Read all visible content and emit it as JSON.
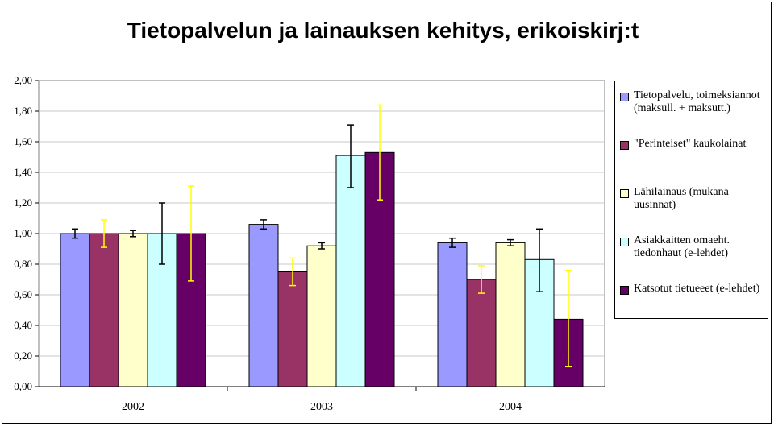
{
  "chart_data": {
    "type": "bar",
    "title": "Tietopalvelun ja lainauksen kehitys, erikoiskirj:t",
    "xlabel": "",
    "ylabel": "",
    "categories": [
      "2002",
      "2003",
      "2004"
    ],
    "ylim": [
      0,
      2
    ],
    "yticks": [
      "0,00",
      "0,20",
      "0,40",
      "0,60",
      "0,80",
      "1,00",
      "1,20",
      "1,40",
      "1,60",
      "1,80",
      "2,00"
    ],
    "grid": true,
    "legend_position": "right",
    "series": [
      {
        "name": "Tietopalvelu, toimeksiannot (maksull. + maksutt.)",
        "color": "#9999ff",
        "error_color": "#000000",
        "values": [
          1.0,
          1.06,
          0.94
        ],
        "error": [
          [
            0.97,
            1.03
          ],
          [
            1.03,
            1.09
          ],
          [
            0.91,
            0.97
          ]
        ]
      },
      {
        "name": "\"Perinteiset\" kaukolainat",
        "color": "#993366",
        "error_color": "#ffff00",
        "values": [
          1.0,
          0.75,
          0.7
        ],
        "error": [
          [
            0.91,
            1.09
          ],
          [
            0.66,
            0.84
          ],
          [
            0.61,
            0.79
          ]
        ]
      },
      {
        "name": "Lähilainaus (mukana uusinnat)",
        "color": "#ffffcc",
        "error_color": "#000000",
        "values": [
          1.0,
          0.92,
          0.94
        ],
        "error": [
          [
            0.98,
            1.02
          ],
          [
            0.9,
            0.94
          ],
          [
            0.92,
            0.96
          ]
        ]
      },
      {
        "name": "Asiakkaitten omaeht. tiedonhaut (e-lehdet)",
        "color": "#ccffff",
        "error_color": "#000000",
        "values": [
          1.0,
          1.51,
          0.83
        ],
        "error": [
          [
            0.8,
            1.2
          ],
          [
            1.3,
            1.71
          ],
          [
            0.62,
            1.03
          ]
        ]
      },
      {
        "name": "Katsotut tietueeet (e-lehdet)",
        "color": "#660066",
        "error_color": "#ffff00",
        "values": [
          1.0,
          1.53,
          0.44
        ],
        "error": [
          [
            0.69,
            1.31
          ],
          [
            1.22,
            1.84
          ],
          [
            0.13,
            0.76
          ]
        ]
      }
    ]
  }
}
